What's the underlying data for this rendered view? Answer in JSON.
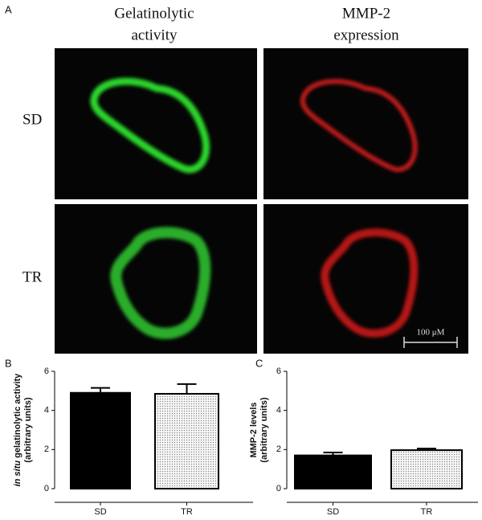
{
  "panels": {
    "a": "A",
    "b": "B",
    "c": "C"
  },
  "columns": [
    [
      "Gelatinolytic",
      "activity"
    ],
    [
      "MMP-2",
      "expression"
    ]
  ],
  "rows": [
    "SD",
    "TR"
  ],
  "scale_bar": "100 μM",
  "chart_data": [
    {
      "type": "bar",
      "y_label_emphasis": "in situ",
      "y_label": "gelatinolytic activity",
      "y_label_units": "(arbitrary units)",
      "categories": [
        "SD",
        "TR"
      ],
      "values": [
        4.9,
        4.85
      ],
      "errors": [
        0.25,
        0.5
      ],
      "colors": [
        "#000000",
        "#e6e6e6"
      ],
      "patterns": [
        false,
        true
      ],
      "ylim": [
        0,
        6
      ],
      "yticks": [
        0,
        2,
        4,
        6
      ]
    },
    {
      "type": "bar",
      "y_label": "MMP-2 levels",
      "y_label_units": "(arbitrary units)",
      "categories": [
        "SD",
        "TR"
      ],
      "values": [
        1.7,
        1.97
      ],
      "errors": [
        0.15,
        0.08
      ],
      "colors": [
        "#000000",
        "#e6e6e6"
      ],
      "patterns": [
        false,
        true
      ],
      "ylim": [
        0,
        6
      ],
      "yticks": [
        0,
        2,
        4,
        6
      ]
    }
  ]
}
